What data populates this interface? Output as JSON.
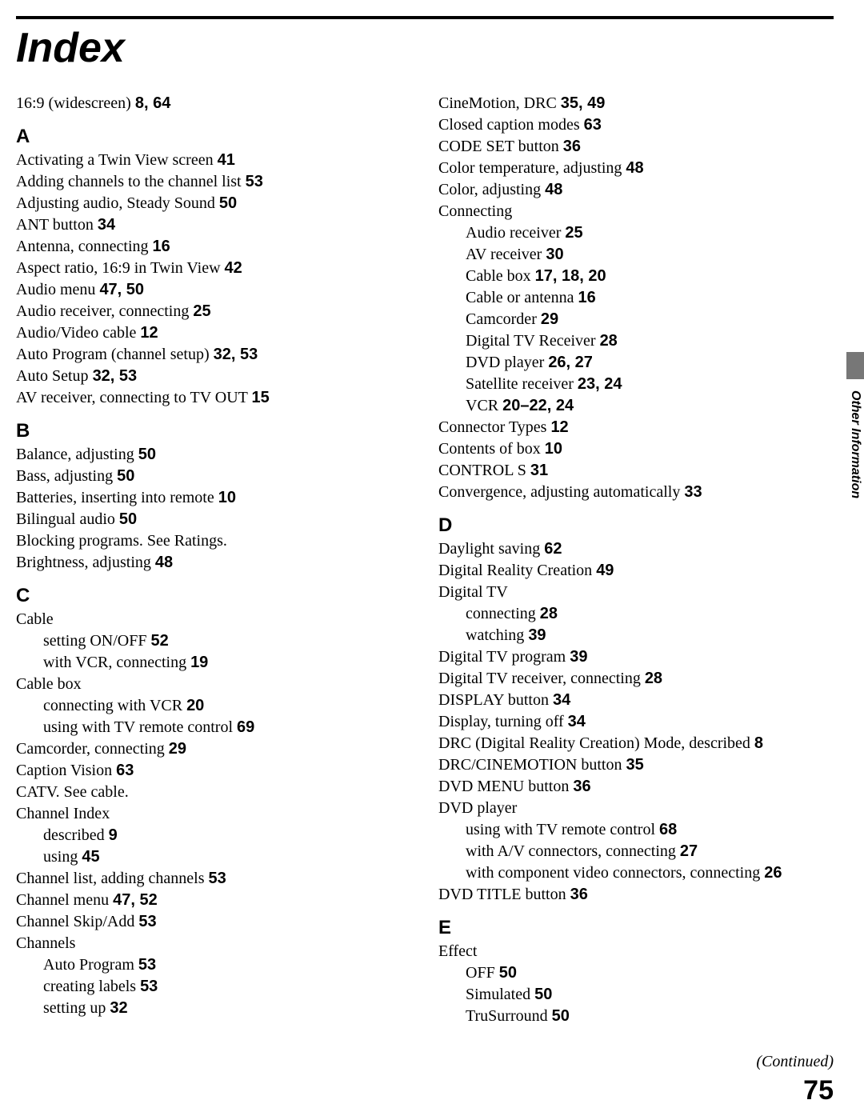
{
  "page": {
    "title": "Index",
    "continued": "(Continued)",
    "pageNumber": "75",
    "sideLabel": "Other Information",
    "colors": {
      "background": "#ffffff",
      "text": "#000000",
      "rule": "#000000",
      "tab": "#777777"
    },
    "typography": {
      "body_family": "Times New Roman",
      "body_size_pt": 15,
      "heading_family": "Arial",
      "title_size_pt": 39,
      "section_head_size_pt": 18,
      "pagenum_size_pt": 26
    }
  },
  "leftColumn": [
    {
      "text": "16:9 (widescreen) ",
      "bold": "8, 64"
    },
    {
      "section": "A"
    },
    {
      "text": "Activating a Twin View screen ",
      "bold": "41"
    },
    {
      "text": "Adding channels to the channel list ",
      "bold": "53"
    },
    {
      "text": "Adjusting audio, Steady Sound ",
      "bold": "50"
    },
    {
      "text": "ANT button ",
      "bold": "34"
    },
    {
      "text": "Antenna, connecting ",
      "bold": "16"
    },
    {
      "text": "Aspect ratio, 16:9 in Twin View ",
      "bold": "42"
    },
    {
      "text": "Audio menu ",
      "bold": "47, 50"
    },
    {
      "text": "Audio receiver, connecting ",
      "bold": "25"
    },
    {
      "text": "Audio/Video cable ",
      "bold": "12"
    },
    {
      "text": "Auto Program (channel setup) ",
      "bold": "32, 53"
    },
    {
      "text": "Auto Setup ",
      "bold": "32, 53"
    },
    {
      "text": "AV receiver, connecting to TV OUT ",
      "bold": "15"
    },
    {
      "section": "B"
    },
    {
      "text": "Balance, adjusting ",
      "bold": "50"
    },
    {
      "text": "Bass, adjusting ",
      "bold": "50"
    },
    {
      "text": "Batteries, inserting into remote ",
      "bold": "10"
    },
    {
      "text": "Bilingual audio ",
      "bold": "50"
    },
    {
      "text": "Blocking programs. See Ratings."
    },
    {
      "text": "Brightness, adjusting ",
      "bold": "48"
    },
    {
      "section": "C"
    },
    {
      "text": "Cable"
    },
    {
      "text": "setting ON/OFF ",
      "bold": "52",
      "sub": true
    },
    {
      "text": "with VCR, connecting ",
      "bold": "19",
      "sub": true
    },
    {
      "text": "Cable box"
    },
    {
      "text": "connecting with VCR ",
      "bold": "20",
      "sub": true
    },
    {
      "text": "using with TV remote control ",
      "bold": "69",
      "sub": true
    },
    {
      "text": "Camcorder, connecting ",
      "bold": "29"
    },
    {
      "text": "Caption Vision ",
      "bold": "63"
    },
    {
      "text": "CATV. See cable."
    },
    {
      "text": "Channel Index"
    },
    {
      "text": "described ",
      "bold": "9",
      "sub": true
    },
    {
      "text": "using ",
      "bold": "45",
      "sub": true
    },
    {
      "text": "Channel list, adding channels ",
      "bold": "53"
    },
    {
      "text": "Channel menu ",
      "bold": "47, 52"
    },
    {
      "text": "Channel Skip/Add ",
      "bold": "53"
    },
    {
      "text": "Channels"
    },
    {
      "text": "Auto Program ",
      "bold": "53",
      "sub": true
    },
    {
      "text": "creating labels ",
      "bold": "53",
      "sub": true
    },
    {
      "text": "setting up ",
      "bold": "32",
      "sub": true
    }
  ],
  "rightColumn": [
    {
      "text": "CineMotion, DRC ",
      "bold": "35, 49"
    },
    {
      "text": "Closed caption modes ",
      "bold": "63"
    },
    {
      "text": "CODE SET button ",
      "bold": "36"
    },
    {
      "text": "Color temperature, adjusting ",
      "bold": "48"
    },
    {
      "text": "Color, adjusting ",
      "bold": "48"
    },
    {
      "text": "Connecting"
    },
    {
      "text": "Audio receiver ",
      "bold": "25",
      "sub": true
    },
    {
      "text": "AV receiver ",
      "bold": "30",
      "sub": true
    },
    {
      "text": "Cable box ",
      "bold": "17, 18, 20",
      "sub": true
    },
    {
      "text": "Cable or antenna ",
      "bold": "16",
      "sub": true
    },
    {
      "text": "Camcorder ",
      "bold": "29",
      "sub": true
    },
    {
      "text": "Digital TV Receiver ",
      "bold": "28",
      "sub": true
    },
    {
      "text": "DVD player ",
      "bold": "26, 27",
      "sub": true
    },
    {
      "text": "Satellite receiver ",
      "bold": "23, 24",
      "sub": true
    },
    {
      "text": "VCR ",
      "bold": "20–22, 24",
      "sub": true
    },
    {
      "text": "Connector Types ",
      "bold": "12"
    },
    {
      "text": "Contents of box ",
      "bold": "10"
    },
    {
      "text": "CONTROL S ",
      "bold": "31"
    },
    {
      "text": "Convergence, adjusting automatically ",
      "bold": "33"
    },
    {
      "section": "D"
    },
    {
      "text": "Daylight saving ",
      "bold": "62"
    },
    {
      "text": "Digital Reality Creation ",
      "bold": "49"
    },
    {
      "text": "Digital TV"
    },
    {
      "text": "connecting ",
      "bold": "28",
      "sub": true
    },
    {
      "text": "watching ",
      "bold": "39",
      "sub": true
    },
    {
      "text": "Digital TV program ",
      "bold": "39"
    },
    {
      "text": "Digital TV receiver, connecting ",
      "bold": "28"
    },
    {
      "text": "DISPLAY button ",
      "bold": "34"
    },
    {
      "text": "Display, turning off ",
      "bold": "34"
    },
    {
      "text": "DRC (Digital Reality Creation) Mode, described ",
      "bold": "8"
    },
    {
      "text": "DRC/CINEMOTION button ",
      "bold": "35"
    },
    {
      "text": "DVD MENU button ",
      "bold": "36"
    },
    {
      "text": "DVD player"
    },
    {
      "text": "using with TV remote control ",
      "bold": "68",
      "sub": true
    },
    {
      "text": "with A/V connectors, connecting ",
      "bold": "27",
      "sub": true
    },
    {
      "text": "with component video connectors, connecting ",
      "bold": "26",
      "sub": true
    },
    {
      "text": "DVD TITLE button ",
      "bold": "36"
    },
    {
      "section": "E"
    },
    {
      "text": "Effect"
    },
    {
      "text": "OFF ",
      "bold": "50",
      "sub": true
    },
    {
      "text": "Simulated ",
      "bold": "50",
      "sub": true
    },
    {
      "text": "TruSurround ",
      "bold": "50",
      "sub": true
    }
  ]
}
